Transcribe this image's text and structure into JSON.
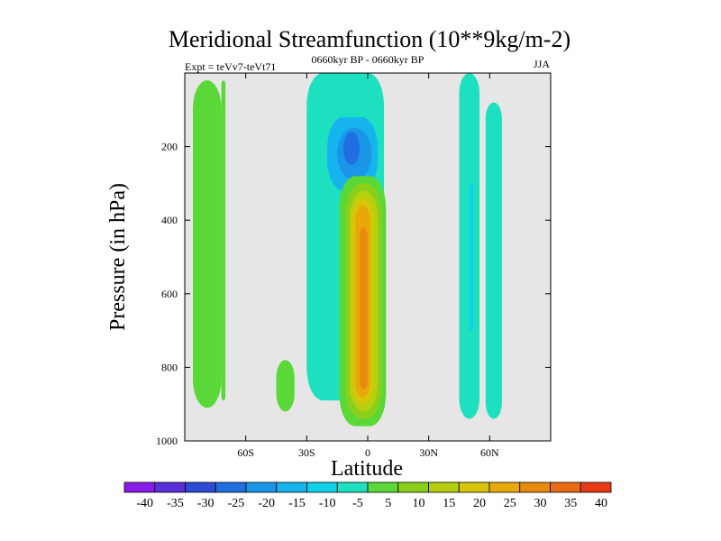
{
  "chart_data": {
    "type": "contour",
    "title": "Meridional Streamfunction (10**9kg/m-2)",
    "subtitle_left": "Expt = teVv7-teVt71",
    "subtitle_center": "0660kyr BP - 0660kyr BP",
    "subtitle_right": "JJA",
    "xlabel": "Latitude",
    "ylabel": "Pressure (in hPa)",
    "xlim": [
      -90,
      90
    ],
    "ylim": [
      1000,
      0
    ],
    "x_ticks": [
      {
        "value": -60,
        "label": "60S"
      },
      {
        "value": -30,
        "label": "30S"
      },
      {
        "value": 0,
        "label": "0"
      },
      {
        "value": 30,
        "label": "30N"
      },
      {
        "value": 60,
        "label": "60N"
      }
    ],
    "y_ticks": [
      {
        "value": 200,
        "label": "200"
      },
      {
        "value": 400,
        "label": "400"
      },
      {
        "value": 600,
        "label": "600"
      },
      {
        "value": 800,
        "label": "800"
      },
      {
        "value": 1000,
        "label": "1000"
      }
    ],
    "background_color": "#e6e6e6",
    "levels": [
      -40,
      -35,
      -30,
      -25,
      -20,
      -15,
      -10,
      -5,
      5,
      10,
      15,
      20,
      25,
      30,
      35,
      40
    ],
    "level_labels": [
      "-40",
      "-35",
      "-30",
      "-25",
      "-20",
      "-15",
      "-10",
      "-5",
      "5",
      "10",
      "15",
      "20",
      "25",
      "30",
      "35",
      "40"
    ],
    "colorbar_colors": [
      "#8a1ae6",
      "#5a2ed8",
      "#2d4bd6",
      "#1f6fe0",
      "#1a95e8",
      "#16b4ee",
      "#10d0ea",
      "#1de0c0",
      "#5ad838",
      "#8ad01a",
      "#b6d010",
      "#d8c408",
      "#e8a80a",
      "#e88a10",
      "#e86a14",
      "#e83a14"
    ],
    "features": [
      {
        "sign": "positive",
        "value": 10,
        "color": "#8ad01a",
        "lat": [
          -80,
          -77
        ],
        "p": [
          20,
          910
        ]
      },
      {
        "sign": "positive",
        "value": 5,
        "color": "#5ad838",
        "lat": [
          -86,
          -72
        ],
        "p": [
          20,
          910
        ]
      },
      {
        "sign": "positive",
        "value": 5,
        "color": "#5ad838",
        "lat": [
          -72,
          -70
        ],
        "p": [
          20,
          890
        ]
      },
      {
        "sign": "positive",
        "value": 5,
        "color": "#5ad838",
        "lat": [
          -45,
          -36
        ],
        "p": [
          780,
          920
        ]
      },
      {
        "sign": "negative",
        "value": -5,
        "color": "#1de0c0",
        "lat": [
          -30,
          8
        ],
        "p": [
          0,
          890
        ]
      },
      {
        "sign": "negative",
        "value": -15,
        "color": "#16b4ee",
        "lat": [
          -20,
          5
        ],
        "p": [
          120,
          320
        ]
      },
      {
        "sign": "negative",
        "value": -20,
        "color": "#1a95e8",
        "lat": [
          -15,
          2
        ],
        "p": [
          150,
          290
        ]
      },
      {
        "sign": "negative",
        "value": -25,
        "color": "#1f6fe0",
        "lat": [
          -12,
          -4
        ],
        "p": [
          160,
          250
        ]
      },
      {
        "sign": "positive",
        "value": 5,
        "color": "#5ad838",
        "lat": [
          -14,
          9
        ],
        "p": [
          280,
          960
        ]
      },
      {
        "sign": "positive",
        "value": 10,
        "color": "#8ad01a",
        "lat": [
          -11,
          7
        ],
        "p": [
          300,
          940
        ]
      },
      {
        "sign": "positive",
        "value": 15,
        "color": "#b6d010",
        "lat": [
          -9,
          5
        ],
        "p": [
          320,
          920
        ]
      },
      {
        "sign": "positive",
        "value": 20,
        "color": "#d8c408",
        "lat": [
          -8,
          3
        ],
        "p": [
          340,
          900
        ]
      },
      {
        "sign": "positive",
        "value": 25,
        "color": "#e8a80a",
        "lat": [
          -6,
          1
        ],
        "p": [
          360,
          880
        ]
      },
      {
        "sign": "positive",
        "value": 30,
        "color": "#e88a10",
        "lat": [
          -4,
          0
        ],
        "p": [
          420,
          860
        ]
      },
      {
        "sign": "negative",
        "value": -5,
        "color": "#1de0c0",
        "lat": [
          45,
          55
        ],
        "p": [
          0,
          940
        ]
      },
      {
        "sign": "negative",
        "value": -5,
        "color": "#1de0c0",
        "lat": [
          58,
          66
        ],
        "p": [
          80,
          940
        ]
      },
      {
        "sign": "negative",
        "value": -10,
        "color": "#10d0ea",
        "lat": [
          50,
          52
        ],
        "p": [
          300,
          700
        ]
      }
    ]
  }
}
